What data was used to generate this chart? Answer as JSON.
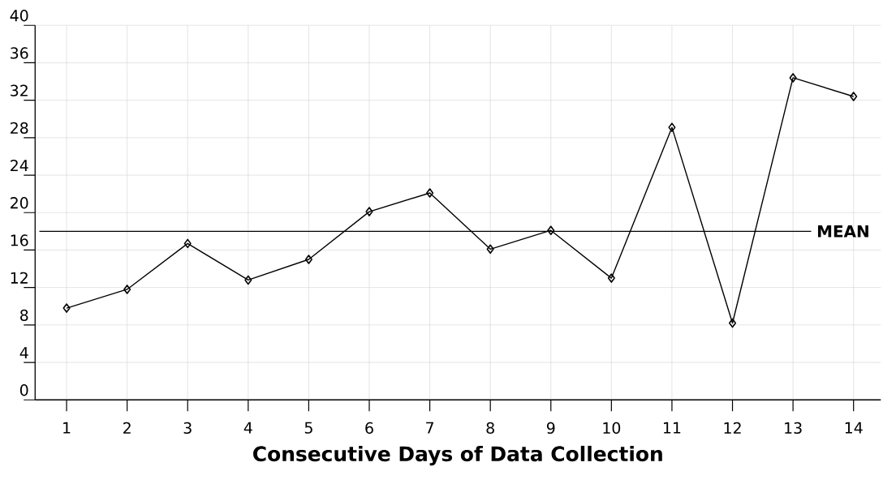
{
  "chart_data": {
    "type": "line",
    "xlabel": "Consecutive Days of Data Collection",
    "categories": [
      "1",
      "2",
      "3",
      "4",
      "5",
      "6",
      "7",
      "8",
      "9",
      "10",
      "11",
      "12",
      "13",
      "14"
    ],
    "series": [
      {
        "color": "#000000",
        "values": [
          9.8,
          11.8,
          16.7,
          12.8,
          15.0,
          20.1,
          22.1,
          16.1,
          18.1,
          13.0,
          29.1,
          8.2,
          34.4,
          32.4
        ]
      }
    ],
    "ylim": [
      0,
      40
    ],
    "yticks": [
      0,
      4,
      8,
      12,
      16,
      20,
      24,
      28,
      32,
      36,
      40
    ],
    "ref_lines": [
      {
        "axis": "y",
        "value": 18,
        "label": "MEAN",
        "color": "#000000"
      }
    ],
    "grid": true,
    "marker": "diamond",
    "line_style": "solid"
  }
}
